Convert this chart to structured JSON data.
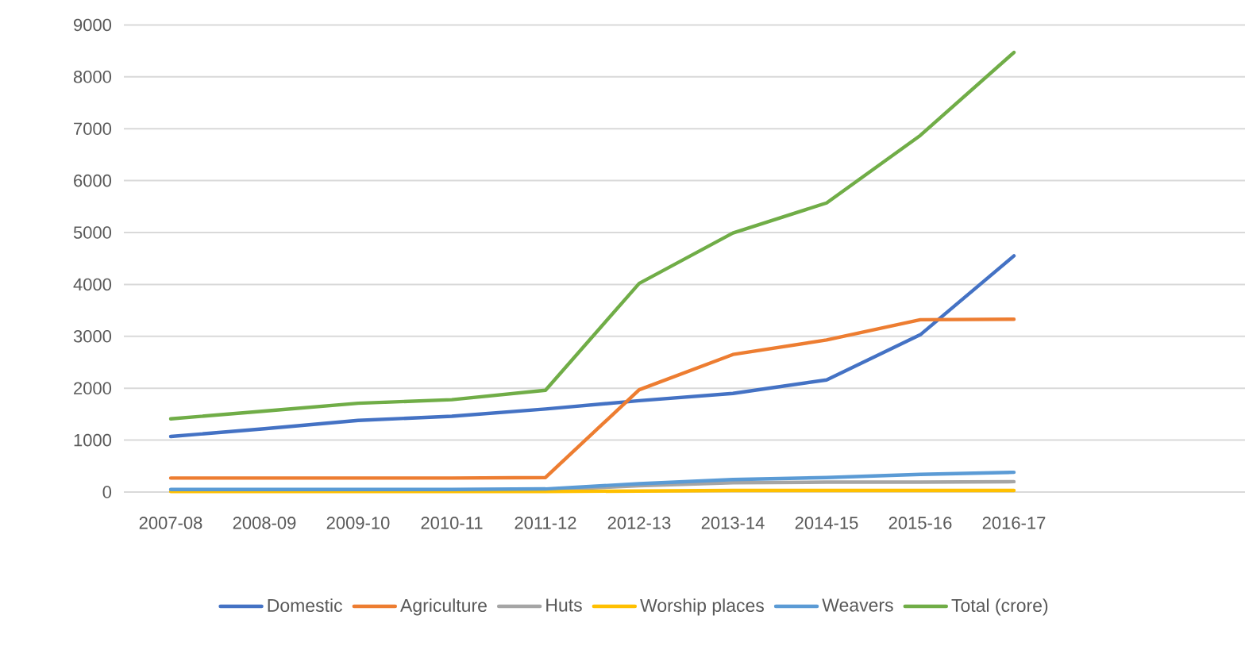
{
  "chart_data": {
    "type": "line",
    "categories": [
      "2007-08",
      "2008-09",
      "2009-10",
      "2010-11",
      "2011-12",
      "2012-13",
      "2013-14",
      "2014-15",
      "2015-16",
      "2016-17"
    ],
    "series": [
      {
        "name": "Domestic",
        "color": "#4472c4",
        "values": [
          1070,
          1220,
          1380,
          1460,
          1600,
          1760,
          1900,
          2160,
          3030,
          4550
        ]
      },
      {
        "name": "Agriculture",
        "color": "#ed7d31",
        "values": [
          270,
          270,
          270,
          270,
          280,
          1970,
          2650,
          2930,
          3320,
          3330
        ]
      },
      {
        "name": "Huts",
        "color": "#a5a5a5",
        "values": [
          null,
          null,
          null,
          null,
          40,
          120,
          180,
          190,
          190,
          200
        ]
      },
      {
        "name": "Worship places",
        "color": "#ffc000",
        "values": [
          10,
          10,
          10,
          10,
          10,
          20,
          30,
          30,
          30,
          30
        ]
      },
      {
        "name": "Weavers",
        "color": "#5b9bd5",
        "values": [
          50,
          50,
          50,
          50,
          60,
          160,
          240,
          280,
          340,
          380
        ]
      },
      {
        "name": "Total (crore)",
        "color": "#70ad47",
        "values": [
          1410,
          1560,
          1710,
          1780,
          1960,
          4020,
          4990,
          5570,
          6870,
          8470
        ]
      }
    ],
    "ylim": [
      0,
      9000
    ],
    "yticks": [
      0,
      1000,
      2000,
      3000,
      4000,
      5000,
      6000,
      7000,
      8000,
      9000
    ],
    "grid": "y",
    "legend": "bottom",
    "marker": "none",
    "line_style": "solid"
  }
}
